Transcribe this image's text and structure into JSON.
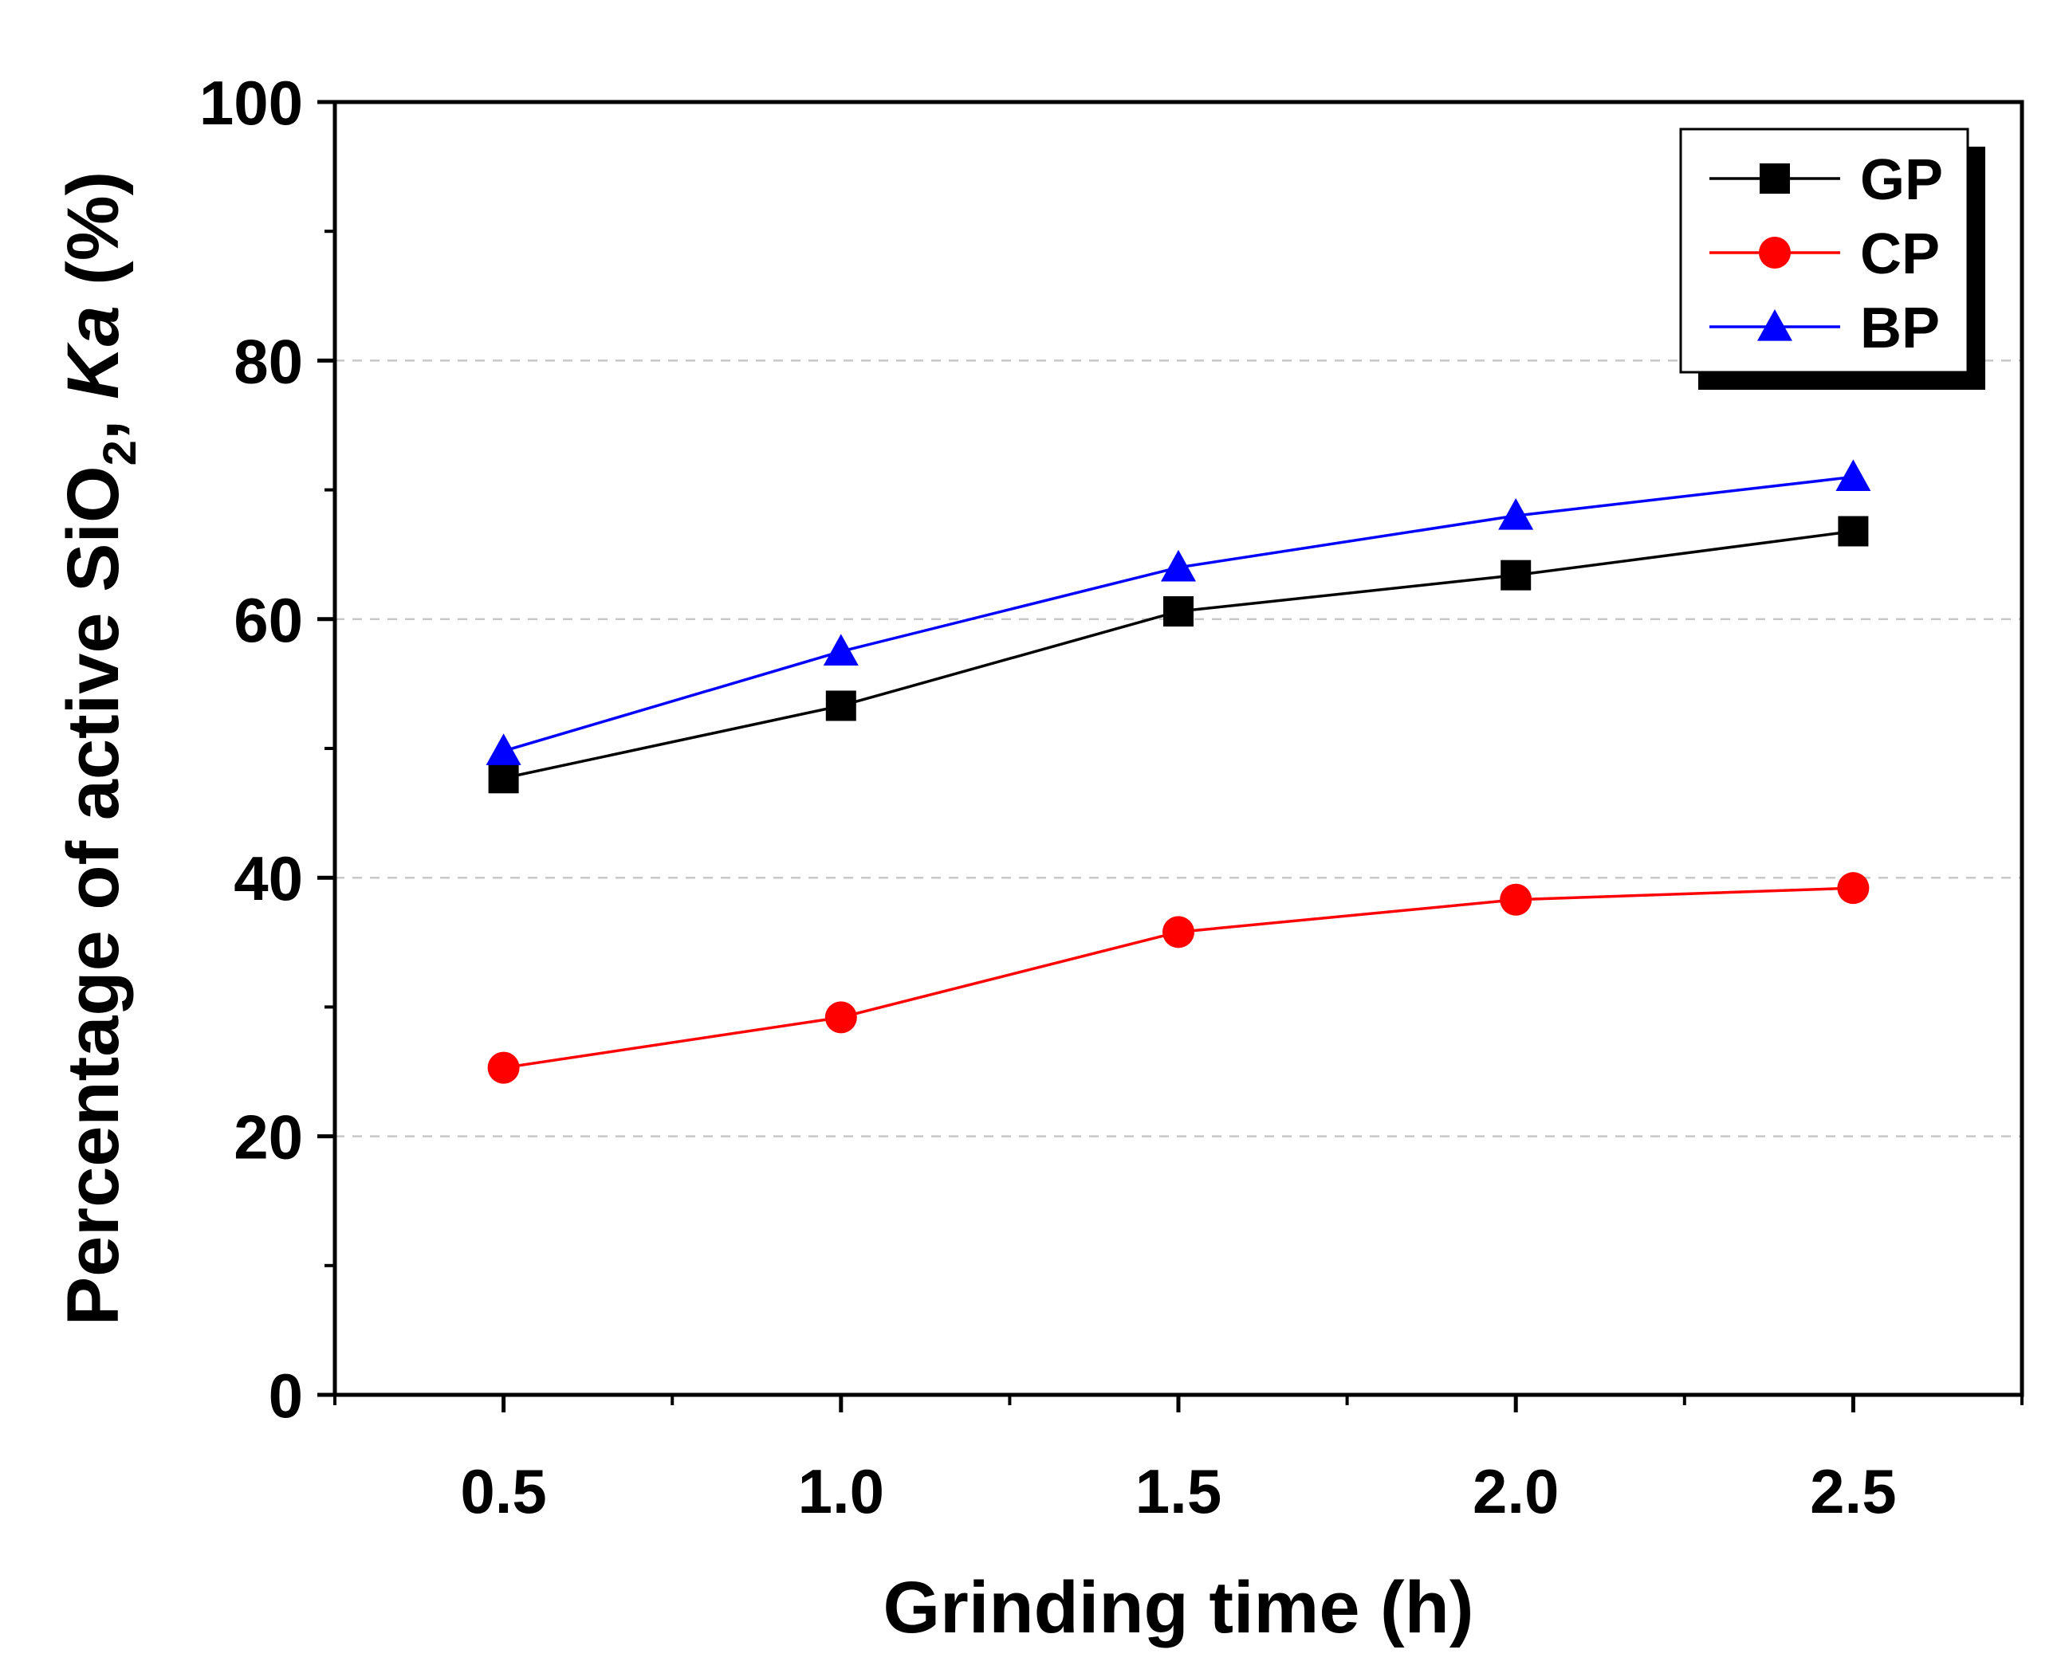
{
  "chart_data": {
    "type": "line",
    "title": "",
    "xlabel": "Grinding time (h)",
    "ylabel": {
      "prefix": "Percentage of active SiO",
      "subscript": "2",
      "comma": ", ",
      "italic": "Ka",
      "suffix": " (%)"
    },
    "xlim": [
      0.25,
      2.75
    ],
    "ylim": [
      0,
      100
    ],
    "x_ticks": [
      0.5,
      1.0,
      1.5,
      2.0,
      2.5
    ],
    "x_tick_labels": [
      "0.5",
      "1.0",
      "1.5",
      "2.0",
      "2.5"
    ],
    "x_minor_ticks": [
      0.25,
      0.75,
      1.25,
      1.75,
      2.25,
      2.75
    ],
    "y_ticks": [
      0,
      20,
      40,
      60,
      80,
      100
    ],
    "y_tick_labels": [
      "0",
      "20",
      "40",
      "60",
      "80",
      "100"
    ],
    "y_minor_ticks": [
      10,
      30,
      50,
      70,
      90
    ],
    "grid_y": [
      20,
      40,
      60,
      80
    ],
    "x": [
      0.5,
      1.0,
      1.5,
      2.0,
      2.5
    ],
    "series": [
      {
        "name": "GP",
        "marker": "square",
        "color": "#000000",
        "values": [
          47.7,
          53.3,
          60.6,
          63.4,
          66.8
        ]
      },
      {
        "name": "CP",
        "marker": "circle",
        "color": "#ff0000",
        "values": [
          25.3,
          29.2,
          35.8,
          38.3,
          39.2
        ]
      },
      {
        "name": "BP",
        "marker": "triangle",
        "color": "#0000ff",
        "values": [
          49.8,
          57.5,
          64.0,
          68.0,
          71.0
        ]
      }
    ],
    "legend_position": "top-right"
  }
}
